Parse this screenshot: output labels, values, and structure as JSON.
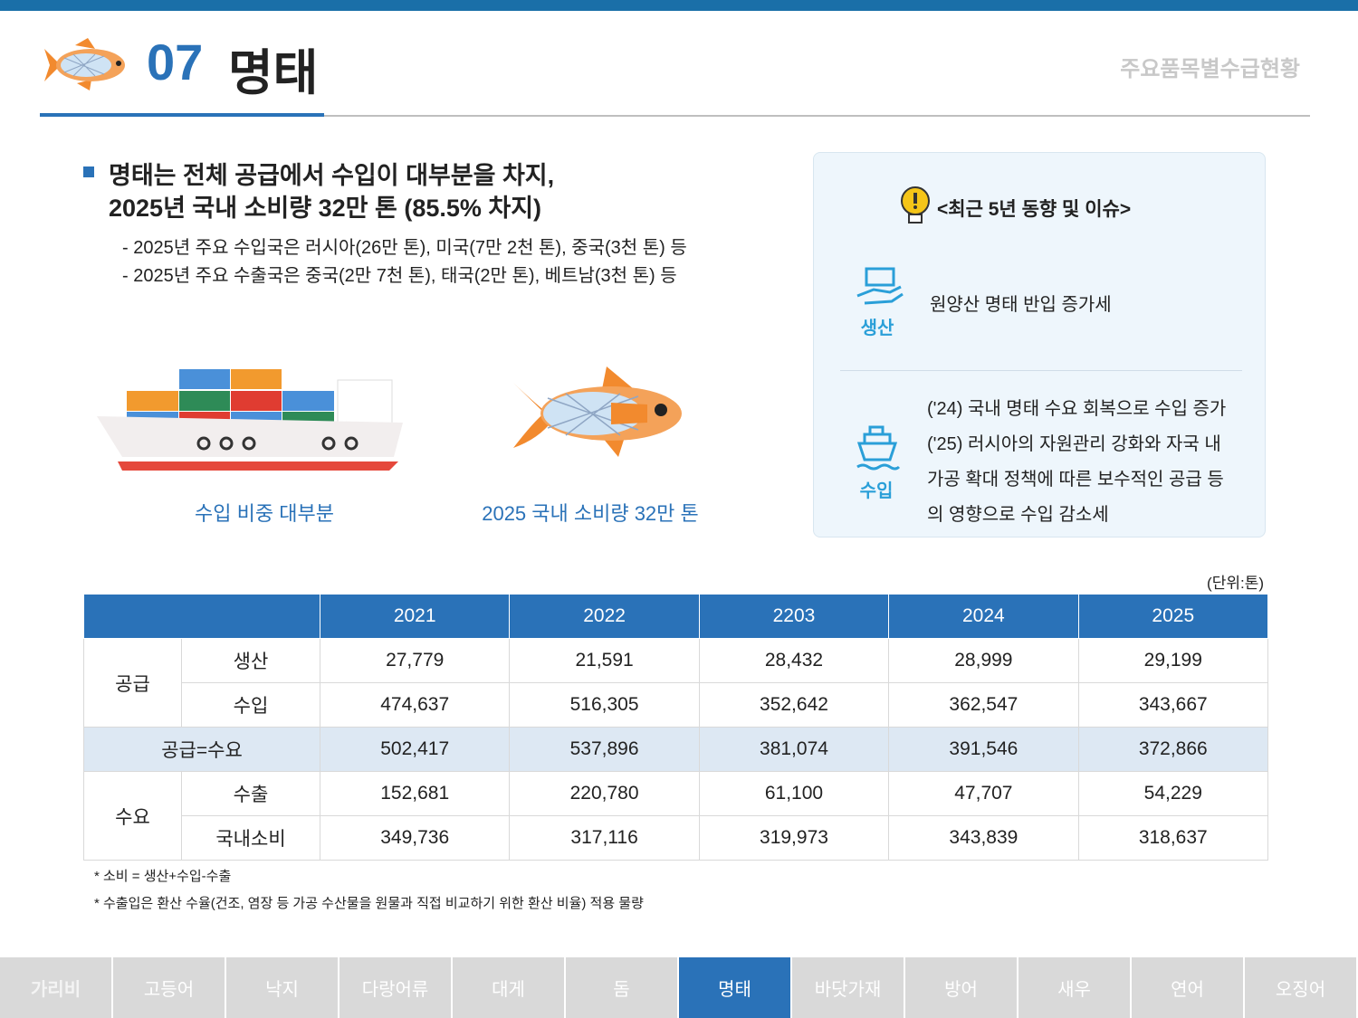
{
  "header": {
    "number": "07",
    "title": "명태",
    "section": "주요품목별수급현황"
  },
  "summary": {
    "headline": [
      "명태는 전체 공급에서 수입이 대부분을 차지,",
      "2025년 국내 소비량 32만 톤 (85.5% 차지)"
    ],
    "bullets": [
      "- 2025년 주요 수입국은 러시아(26만 톤), 미국(7만 2천 톤), 중국(3천 톤) 등",
      "- 2025년 주요 수출국은 중국(2만 7천 톤), 태국(2만 톤), 베트남(3천 톤) 등"
    ]
  },
  "illustrations": {
    "ship_caption": "수입 비중 대부분",
    "fish_caption": "2025 국내 소비량 32만 톤"
  },
  "trends": {
    "title": "<최근 5년 동향 및 이슈>",
    "items": [
      {
        "label": "생산",
        "lines": [
          "원양산 명태 반입 증가세"
        ]
      },
      {
        "label": "수입",
        "lines": [
          "('24) 국내 명태 수요 회복으로 수입 증가",
          "('25) 러시아의 자원관리 강화와 자국 내",
          "가공 확대 정책에 따른 보수적인 공급 등",
          "의 영향으로 수입 감소세"
        ]
      }
    ]
  },
  "table": {
    "unit": "(단위:톤)",
    "columns": [
      "2021",
      "2022",
      "2203",
      "2024",
      "2025"
    ],
    "sections": [
      {
        "group": "공급",
        "rows": [
          {
            "label": "생산",
            "values": [
              "27,779",
              "21,591",
              "28,432",
              "28,999",
              "29,199"
            ]
          },
          {
            "label": "수입",
            "values": [
              "474,637",
              "516,305",
              "352,642",
              "362,547",
              "343,667"
            ]
          }
        ]
      },
      {
        "label": "공급=수요",
        "values": [
          "502,417",
          "537,896",
          "381,074",
          "391,546",
          "372,866"
        ]
      },
      {
        "group": "수요",
        "rows": [
          {
            "label": "수출",
            "values": [
              "152,681",
              "220,780",
              "61,100",
              "47,707",
              "54,229"
            ]
          },
          {
            "label": "국내소비",
            "values": [
              "349,736",
              "317,116",
              "319,973",
              "343,839",
              "318,637"
            ]
          }
        ]
      }
    ]
  },
  "notes": [
    "* 소비 = 생산+수입-수출",
    "* 수출입은 환산 수율(건조, 염장 등 가공 수산물을 원물과 직접 비교하기 위한 환산 비율) 적용 물량"
  ],
  "tabs": {
    "items": [
      "가리비",
      "고등어",
      "낙지",
      "다랑어류",
      "대게",
      "돔",
      "명태",
      "바닷가재",
      "방어",
      "새우",
      "연어",
      "오징어"
    ],
    "active": 6
  }
}
